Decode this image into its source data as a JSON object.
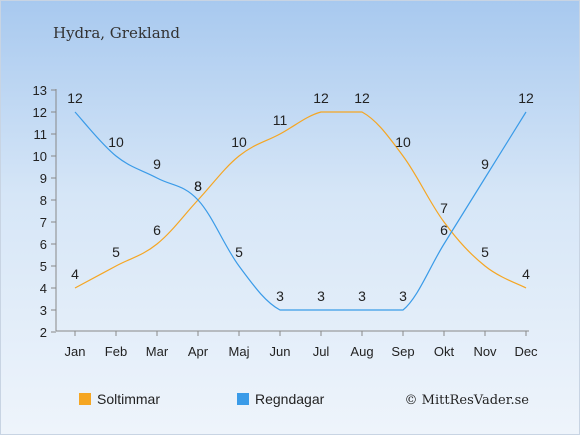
{
  "chart_data": {
    "type": "line",
    "title": "Hydra, Grekland",
    "categories": [
      "Jan",
      "Feb",
      "Mar",
      "Apr",
      "Maj",
      "Jun",
      "Jul",
      "Aug",
      "Sep",
      "Okt",
      "Nov",
      "Dec"
    ],
    "ylim": [
      2,
      13
    ],
    "yticks": [
      2,
      3,
      4,
      5,
      6,
      7,
      8,
      9,
      10,
      11,
      12,
      13
    ],
    "grid": false,
    "legend_position": "bottom-left",
    "series": [
      {
        "name": "Soltimmar",
        "color": "#f5a623",
        "values": [
          4,
          5,
          6,
          8,
          10,
          11,
          12,
          12,
          10,
          7,
          5,
          4
        ]
      },
      {
        "name": "Regndagar",
        "color": "#3a9be8",
        "values": [
          12,
          10,
          9,
          8,
          5,
          3,
          3,
          3,
          3,
          6,
          9,
          12
        ]
      }
    ],
    "credit": "© MittResVader.se"
  }
}
